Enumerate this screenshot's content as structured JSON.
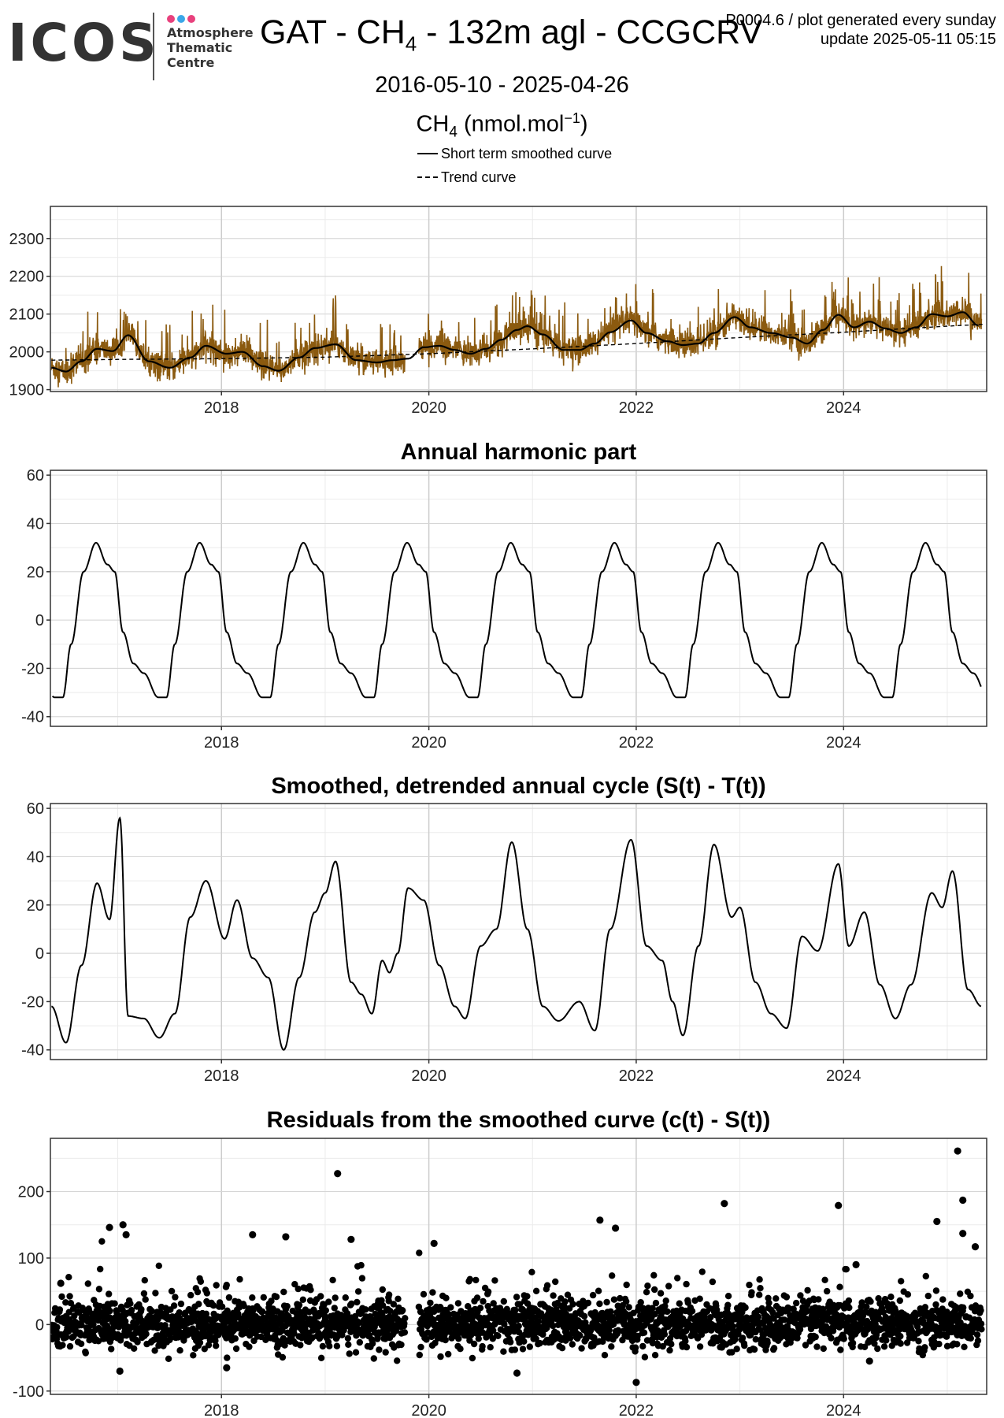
{
  "header": {
    "logo_text": "ICOS",
    "logo_lines": [
      "Atmosphere",
      "Thematic",
      "Centre"
    ],
    "logo_dot_colors": [
      "#e8417d",
      "#3aa7e8",
      "#e8417d"
    ],
    "title_prefix": "GAT - CH",
    "title_sub": "4",
    "title_suffix": " - 132m agl - CCGCRV",
    "version": "P0004.6 / plot generated every sunday",
    "update": "update  2025-05-11 05:15",
    "date_range": "2016-05-10 - 2025-04-26",
    "ylabel_main": "CH",
    "ylabel_sub": "4",
    "ylabel_unit": " (nmol.mol",
    "ylabel_sup": "−1",
    "ylabel_close": ")"
  },
  "legend": {
    "items": [
      {
        "label": "Short term smoothed curve",
        "style": "solid"
      },
      {
        "label": "Trend curve",
        "style": "dashed"
      }
    ]
  },
  "colors": {
    "observations": "#8B5A0F",
    "curve": "#000000",
    "grid": "#ebebeb",
    "grid_major_x": "#cccccc"
  },
  "chart_data": [
    {
      "type": "line",
      "title": "",
      "xlim": [
        2016.35,
        2025.38
      ],
      "ylim": [
        1895,
        2385
      ],
      "yticks": [
        1900,
        2000,
        2100,
        2200,
        2300
      ],
      "xticks": [
        2018,
        2020,
        2022,
        2024
      ],
      "series": [
        {
          "name": "Short term smoothed curve",
          "style": "solid",
          "x": [
            2016.36,
            2016.5,
            2016.65,
            2016.8,
            2016.95,
            2017.1,
            2017.3,
            2017.5,
            2017.7,
            2017.85,
            2018.05,
            2018.2,
            2018.4,
            2018.55,
            2018.75,
            2018.9,
            2019.1,
            2019.3,
            2019.5,
            2019.65,
            2019.8,
            2019.95,
            2020.1,
            2020.25,
            2020.4,
            2020.55,
            2020.7,
            2020.85,
            2020.95,
            2021.1,
            2021.3,
            2021.45,
            2021.6,
            2021.75,
            2021.95,
            2022.1,
            2022.3,
            2022.45,
            2022.6,
            2022.75,
            2022.95,
            2023.1,
            2023.3,
            2023.5,
            2023.65,
            2023.8,
            2023.95,
            2024.1,
            2024.25,
            2024.4,
            2024.55,
            2024.7,
            2024.85,
            2025.0,
            2025.15,
            2025.3
          ],
          "y": [
            1958,
            1948,
            1975,
            2008,
            2002,
            2044,
            1975,
            1958,
            1985,
            2016,
            1995,
            2000,
            1962,
            1950,
            1985,
            2010,
            2020,
            1978,
            1972,
            1978,
            1982,
            2012,
            2016,
            2005,
            1995,
            2008,
            2032,
            2058,
            2068,
            2046,
            2005,
            2005,
            2022,
            2052,
            2083,
            2050,
            2028,
            2018,
            2022,
            2050,
            2092,
            2065,
            2050,
            2038,
            2022,
            2058,
            2098,
            2065,
            2080,
            2062,
            2050,
            2065,
            2100,
            2094,
            2105,
            2070
          ]
        },
        {
          "name": "Trend curve",
          "style": "dashed",
          "x": [
            2016.36,
            2017.0,
            2018.0,
            2019.0,
            2020.0,
            2021.0,
            2022.0,
            2023.0,
            2024.0,
            2025.0,
            2025.35
          ],
          "y": [
            1978,
            1980,
            1982,
            1986,
            1995,
            2008,
            2022,
            2038,
            2052,
            2068,
            2073
          ]
        }
      ]
    },
    {
      "type": "line",
      "title": "Annual harmonic part",
      "xlim": [
        2016.35,
        2025.38
      ],
      "ylim": [
        -44,
        62
      ],
      "yticks": [
        -40,
        -20,
        0,
        20,
        40,
        60
      ],
      "xticks": [
        2018,
        2020,
        2022,
        2024
      ],
      "series": [
        {
          "pattern_phase": [
            0.0,
            0.08,
            0.2,
            0.32,
            0.43,
            0.5,
            0.58,
            0.68,
            0.78,
            0.92,
            1.0
          ],
          "pattern_value": [
            -32,
            -10,
            20,
            32,
            23,
            20,
            -5,
            -18,
            -22,
            -32,
            -32
          ],
          "period_start": 2016.47,
          "x_end": 2025.33
        }
      ]
    },
    {
      "type": "line",
      "title": "Smoothed, detrended annual cycle (S(t) - T(t))",
      "xlim": [
        2016.35,
        2025.38
      ],
      "ylim": [
        -44,
        62
      ],
      "yticks": [
        -40,
        -20,
        0,
        20,
        40,
        60
      ],
      "xticks": [
        2018,
        2020,
        2022,
        2024
      ],
      "series": [
        {
          "x": [
            2016.36,
            2016.5,
            2016.65,
            2016.8,
            2016.92,
            2017.02,
            2017.1,
            2017.25,
            2017.4,
            2017.55,
            2017.7,
            2017.85,
            2018.03,
            2018.15,
            2018.3,
            2018.45,
            2018.6,
            2018.75,
            2018.9,
            2019.0,
            2019.1,
            2019.25,
            2019.35,
            2019.45,
            2019.55,
            2019.62,
            2019.7,
            2019.8,
            2019.95,
            2020.1,
            2020.25,
            2020.35,
            2020.5,
            2020.65,
            2020.8,
            2020.95,
            2021.1,
            2021.25,
            2021.45,
            2021.6,
            2021.75,
            2021.95,
            2022.1,
            2022.25,
            2022.35,
            2022.45,
            2022.6,
            2022.75,
            2022.92,
            2023.0,
            2023.15,
            2023.3,
            2023.45,
            2023.6,
            2023.75,
            2023.95,
            2024.05,
            2024.2,
            2024.35,
            2024.5,
            2024.65,
            2024.85,
            2024.95,
            2025.05,
            2025.2,
            2025.33
          ],
          "y": [
            -22,
            -37,
            -5,
            29,
            14,
            56,
            -26,
            -27,
            -35,
            -25,
            15,
            30,
            6,
            22,
            -2,
            -10,
            -40,
            -10,
            17,
            25,
            38,
            -12,
            -17,
            -25,
            -3,
            -8,
            0,
            27,
            22,
            -5,
            -22,
            -27,
            3,
            10,
            46,
            10,
            -22,
            -28,
            -20,
            -32,
            10,
            47,
            3,
            -3,
            -20,
            -34,
            3,
            45,
            15,
            19,
            -12,
            -25,
            -31,
            7,
            1,
            37,
            3,
            17,
            -13,
            -27,
            -13,
            25,
            19,
            34,
            -15,
            -22
          ]
        }
      ]
    },
    {
      "type": "scatter",
      "title": "Residuals from the smoothed curve (c(t) - S(t))",
      "xlim": [
        2016.35,
        2025.38
      ],
      "ylim": [
        -105,
        280
      ],
      "yticks": [
        -100,
        0,
        100,
        200
      ],
      "xticks": [
        2018,
        2020,
        2022,
        2024
      ],
      "series": [
        {
          "name": "Residuals",
          "range": [
            2016.36,
            2025.33
          ],
          "gap": [
            2019.77,
            2019.9
          ],
          "outliers": [
            {
              "x": 2016.45,
              "y": 62
            },
            {
              "x": 2016.92,
              "y": 146
            },
            {
              "x": 2017.05,
              "y": 150
            },
            {
              "x": 2017.08,
              "y": 135
            },
            {
              "x": 2018.3,
              "y": 135
            },
            {
              "x": 2018.62,
              "y": 132
            },
            {
              "x": 2019.12,
              "y": 227
            },
            {
              "x": 2019.25,
              "y": 128
            },
            {
              "x": 2020.05,
              "y": 122
            },
            {
              "x": 2021.65,
              "y": 157
            },
            {
              "x": 2021.8,
              "y": 145
            },
            {
              "x": 2022.85,
              "y": 182
            },
            {
              "x": 2023.95,
              "y": 179
            },
            {
              "x": 2024.12,
              "y": 90
            },
            {
              "x": 2024.9,
              "y": 155
            },
            {
              "x": 2025.1,
              "y": 261
            },
            {
              "x": 2025.15,
              "y": 187
            },
            {
              "x": 2025.15,
              "y": 137
            },
            {
              "x": 2025.27,
              "y": 117
            },
            {
              "x": 2022.0,
              "y": -87
            },
            {
              "x": 2020.85,
              "y": -73
            },
            {
              "x": 2017.02,
              "y": -70
            },
            {
              "x": 2018.05,
              "y": -65
            },
            {
              "x": 2024.25,
              "y": -55
            }
          ]
        }
      ]
    }
  ]
}
